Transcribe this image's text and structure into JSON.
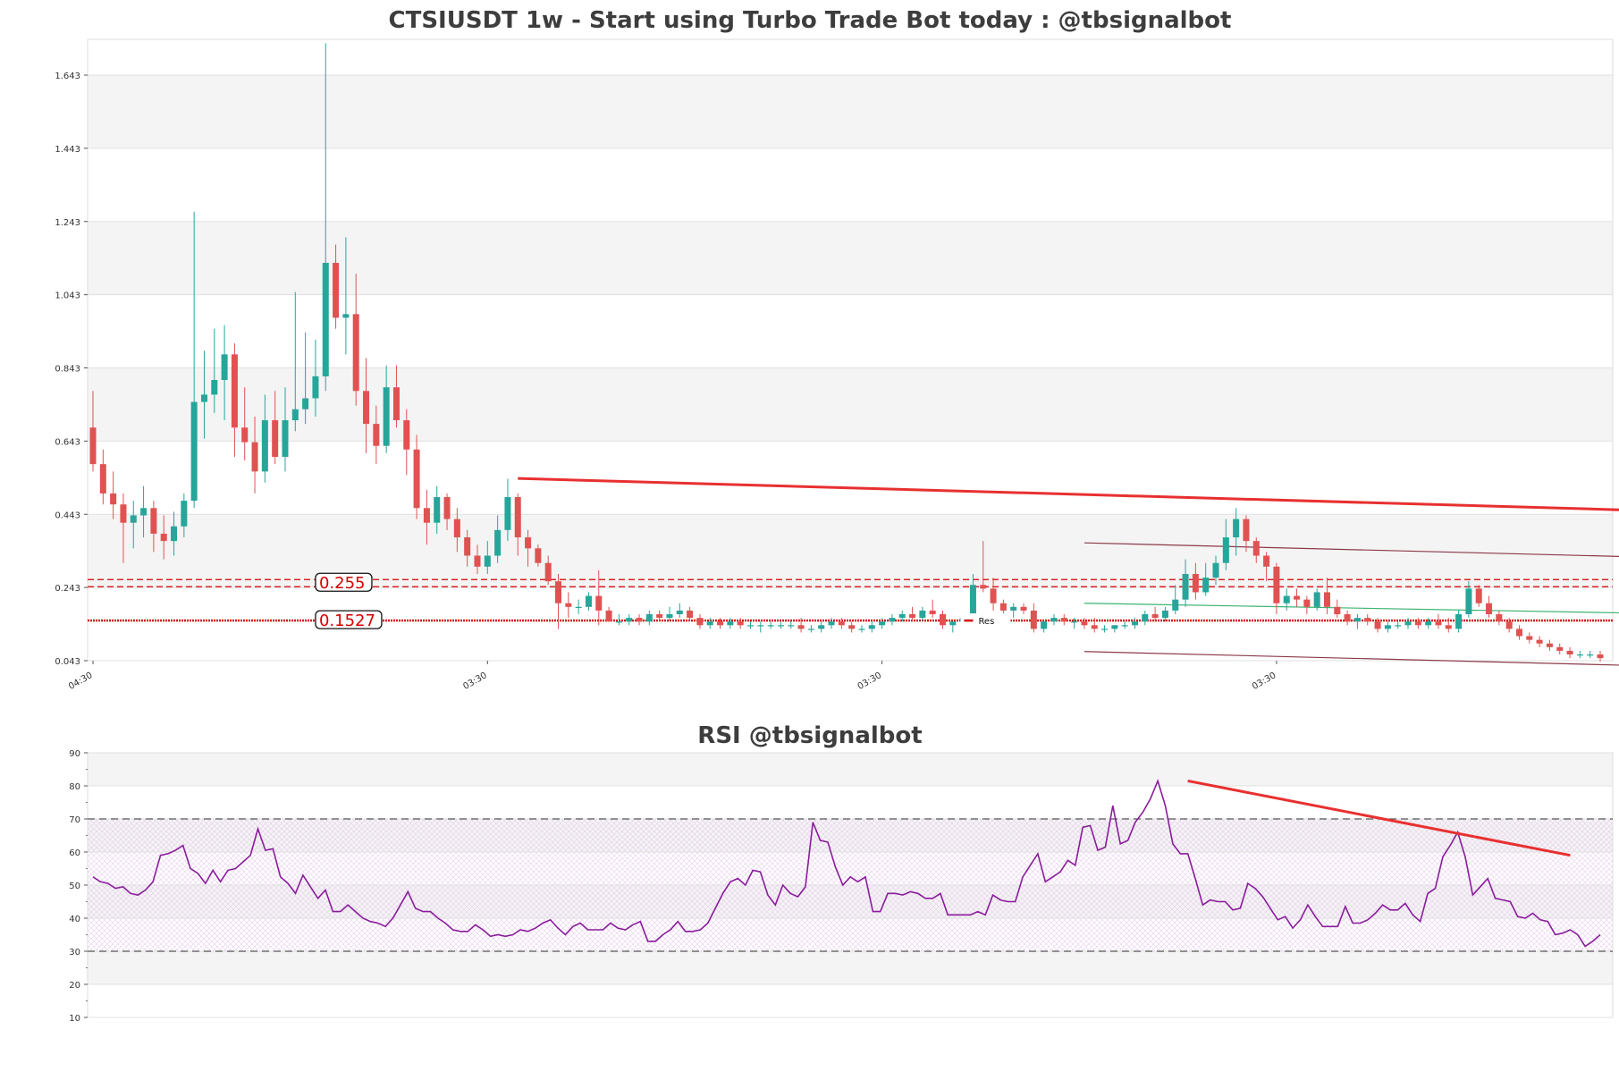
{
  "colors": {
    "up": "#26a69a",
    "down": "#e05252",
    "trend": "#e83030",
    "channel": "#8b3a4a",
    "inner": "#3cb371",
    "level": "#d40000",
    "rsi": "#8a1c9c",
    "band": "#f4f4f4",
    "grid": "#e0e0e0"
  },
  "chart_data": [
    {
      "type": "candlestick",
      "title": "CTSIUSDT 1w - Start using Turbo Trade Bot today : @tbsignalbot",
      "ylim": [
        0.043,
        1.76
      ],
      "yticks": [
        "0.043",
        "0.243",
        "0.443",
        "0.643",
        "0.843",
        "1.043",
        "1.243",
        "1.443",
        "1.643"
      ],
      "xticks": [
        {
          "label": "04:30",
          "index": 0
        },
        {
          "label": "03:30",
          "index": 39
        },
        {
          "label": "03:30",
          "index": 78
        },
        {
          "label": "03:30",
          "index": 117
        },
        {
          "label": "03:30",
          "index": 156
        },
        {
          "label": "03:30",
          "index": 195
        }
      ],
      "levels": [
        {
          "label": "0.255",
          "value": 0.255,
          "style": "dashed"
        },
        {
          "label": "0.1527",
          "value": 0.1527,
          "style": "dotted"
        }
      ],
      "resistance_label": "Res",
      "resistance_value": 0.1527,
      "trendlines": [
        {
          "role": "trend",
          "from": [
            42,
            0.541
          ],
          "to": [
            197,
            0.419
          ]
        },
        {
          "role": "channel",
          "from": [
            98,
            0.365
          ],
          "to": [
            195,
            0.297
          ]
        },
        {
          "role": "channel",
          "from": [
            98,
            0.068
          ],
          "to": [
            195,
            0.0
          ]
        },
        {
          "role": "inner",
          "from": [
            98,
            0.2
          ],
          "to": [
            195,
            0.152
          ]
        }
      ],
      "candles": [
        [
          0.68,
          0.78,
          0.56,
          0.58
        ],
        [
          0.58,
          0.62,
          0.47,
          0.5
        ],
        [
          0.5,
          0.56,
          0.43,
          0.47
        ],
        [
          0.47,
          0.5,
          0.31,
          0.42
        ],
        [
          0.42,
          0.48,
          0.35,
          0.44
        ],
        [
          0.44,
          0.52,
          0.38,
          0.46
        ],
        [
          0.46,
          0.48,
          0.34,
          0.39
        ],
        [
          0.39,
          0.44,
          0.32,
          0.37
        ],
        [
          0.37,
          0.45,
          0.33,
          0.41
        ],
        [
          0.41,
          0.5,
          0.38,
          0.48
        ],
        [
          0.48,
          1.27,
          0.46,
          0.75
        ],
        [
          0.75,
          0.89,
          0.65,
          0.77
        ],
        [
          0.77,
          0.95,
          0.72,
          0.81
        ],
        [
          0.81,
          0.96,
          0.7,
          0.88
        ],
        [
          0.88,
          0.91,
          0.6,
          0.68
        ],
        [
          0.68,
          0.79,
          0.59,
          0.64
        ],
        [
          0.64,
          0.71,
          0.5,
          0.56
        ],
        [
          0.56,
          0.77,
          0.53,
          0.7
        ],
        [
          0.7,
          0.78,
          0.58,
          0.6
        ],
        [
          0.6,
          0.79,
          0.56,
          0.7
        ],
        [
          0.7,
          1.05,
          0.67,
          0.73
        ],
        [
          0.73,
          0.94,
          0.69,
          0.76
        ],
        [
          0.76,
          0.92,
          0.71,
          0.82
        ],
        [
          0.82,
          1.73,
          0.78,
          1.13
        ],
        [
          1.13,
          1.18,
          0.95,
          0.98
        ],
        [
          0.98,
          1.2,
          0.88,
          0.99
        ],
        [
          0.99,
          1.1,
          0.74,
          0.78
        ],
        [
          0.78,
          0.87,
          0.61,
          0.69
        ],
        [
          0.69,
          0.74,
          0.58,
          0.63
        ],
        [
          0.63,
          0.85,
          0.61,
          0.79
        ],
        [
          0.79,
          0.85,
          0.68,
          0.7
        ],
        [
          0.7,
          0.73,
          0.55,
          0.62
        ],
        [
          0.62,
          0.66,
          0.43,
          0.46
        ],
        [
          0.46,
          0.51,
          0.36,
          0.42
        ],
        [
          0.42,
          0.52,
          0.39,
          0.49
        ],
        [
          0.49,
          0.5,
          0.4,
          0.43
        ],
        [
          0.43,
          0.46,
          0.34,
          0.38
        ],
        [
          0.38,
          0.4,
          0.3,
          0.33
        ],
        [
          0.33,
          0.36,
          0.28,
          0.3
        ],
        [
          0.3,
          0.37,
          0.28,
          0.33
        ],
        [
          0.33,
          0.44,
          0.31,
          0.4
        ],
        [
          0.4,
          0.54,
          0.37,
          0.49
        ],
        [
          0.49,
          0.5,
          0.33,
          0.38
        ],
        [
          0.38,
          0.4,
          0.3,
          0.35
        ],
        [
          0.35,
          0.36,
          0.3,
          0.31
        ],
        [
          0.31,
          0.33,
          0.25,
          0.26
        ],
        [
          0.26,
          0.28,
          0.13,
          0.2
        ],
        [
          0.2,
          0.23,
          0.16,
          0.19
        ],
        [
          0.19,
          0.21,
          0.17,
          0.19
        ],
        [
          0.19,
          0.23,
          0.18,
          0.22
        ],
        [
          0.22,
          0.29,
          0.14,
          0.18
        ],
        [
          0.18,
          0.19,
          0.15,
          0.15
        ],
        [
          0.15,
          0.17,
          0.14,
          0.15
        ],
        [
          0.15,
          0.17,
          0.14,
          0.16
        ],
        [
          0.16,
          0.17,
          0.14,
          0.15
        ],
        [
          0.15,
          0.18,
          0.14,
          0.17
        ],
        [
          0.17,
          0.18,
          0.15,
          0.16
        ],
        [
          0.16,
          0.19,
          0.15,
          0.17
        ],
        [
          0.17,
          0.2,
          0.16,
          0.18
        ],
        [
          0.18,
          0.19,
          0.15,
          0.16
        ],
        [
          0.16,
          0.17,
          0.13,
          0.14
        ],
        [
          0.14,
          0.16,
          0.13,
          0.15
        ],
        [
          0.15,
          0.16,
          0.13,
          0.14
        ],
        [
          0.14,
          0.16,
          0.13,
          0.15
        ],
        [
          0.15,
          0.16,
          0.13,
          0.14
        ],
        [
          0.14,
          0.15,
          0.13,
          0.14
        ],
        [
          0.14,
          0.15,
          0.12,
          0.14
        ],
        [
          0.14,
          0.15,
          0.13,
          0.14
        ],
        [
          0.14,
          0.15,
          0.13,
          0.14
        ],
        [
          0.14,
          0.15,
          0.13,
          0.14
        ],
        [
          0.14,
          0.16,
          0.12,
          0.13
        ],
        [
          0.13,
          0.14,
          0.12,
          0.13
        ],
        [
          0.13,
          0.15,
          0.12,
          0.14
        ],
        [
          0.14,
          0.16,
          0.13,
          0.15
        ],
        [
          0.15,
          0.16,
          0.13,
          0.14
        ],
        [
          0.14,
          0.15,
          0.12,
          0.13
        ],
        [
          0.13,
          0.14,
          0.12,
          0.13
        ],
        [
          0.13,
          0.15,
          0.12,
          0.14
        ],
        [
          0.14,
          0.16,
          0.13,
          0.15
        ],
        [
          0.15,
          0.17,
          0.14,
          0.16
        ],
        [
          0.16,
          0.18,
          0.15,
          0.17
        ],
        [
          0.17,
          0.19,
          0.15,
          0.16
        ],
        [
          0.16,
          0.19,
          0.15,
          0.18
        ],
        [
          0.18,
          0.21,
          0.16,
          0.17
        ],
        [
          0.17,
          0.18,
          0.13,
          0.14
        ],
        [
          0.14,
          0.15,
          0.12,
          0.15
        ],
        [
          0.15,
          0.17,
          0.14,
          0.16
        ],
        [
          0.16,
          0.28,
          0.15,
          0.25
        ],
        [
          0.25,
          0.37,
          0.23,
          0.24
        ],
        [
          0.24,
          0.27,
          0.18,
          0.2
        ],
        [
          0.2,
          0.21,
          0.17,
          0.18
        ],
        [
          0.18,
          0.2,
          0.16,
          0.19
        ],
        [
          0.19,
          0.2,
          0.17,
          0.18
        ],
        [
          0.18,
          0.2,
          0.12,
          0.13
        ],
        [
          0.13,
          0.15,
          0.12,
          0.15
        ],
        [
          0.15,
          0.17,
          0.14,
          0.16
        ],
        [
          0.16,
          0.17,
          0.14,
          0.15
        ],
        [
          0.15,
          0.16,
          0.13,
          0.15
        ],
        [
          0.15,
          0.16,
          0.13,
          0.14
        ],
        [
          0.14,
          0.16,
          0.12,
          0.13
        ],
        [
          0.13,
          0.14,
          0.12,
          0.13
        ],
        [
          0.13,
          0.14,
          0.12,
          0.14
        ],
        [
          0.14,
          0.15,
          0.13,
          0.14
        ],
        [
          0.14,
          0.16,
          0.13,
          0.15
        ],
        [
          0.15,
          0.18,
          0.14,
          0.17
        ],
        [
          0.17,
          0.19,
          0.15,
          0.16
        ],
        [
          0.16,
          0.19,
          0.15,
          0.18
        ],
        [
          0.18,
          0.25,
          0.17,
          0.21
        ],
        [
          0.21,
          0.32,
          0.19,
          0.28
        ],
        [
          0.28,
          0.31,
          0.21,
          0.23
        ],
        [
          0.23,
          0.31,
          0.22,
          0.27
        ],
        [
          0.27,
          0.33,
          0.25,
          0.31
        ],
        [
          0.31,
          0.43,
          0.29,
          0.38
        ],
        [
          0.38,
          0.46,
          0.33,
          0.43
        ],
        [
          0.43,
          0.44,
          0.34,
          0.37
        ],
        [
          0.37,
          0.38,
          0.31,
          0.33
        ],
        [
          0.33,
          0.34,
          0.26,
          0.3
        ],
        [
          0.3,
          0.31,
          0.17,
          0.2
        ],
        [
          0.2,
          0.24,
          0.18,
          0.22
        ],
        [
          0.22,
          0.24,
          0.19,
          0.21
        ],
        [
          0.21,
          0.22,
          0.17,
          0.19
        ],
        [
          0.19,
          0.24,
          0.18,
          0.23
        ],
        [
          0.23,
          0.27,
          0.17,
          0.19
        ],
        [
          0.19,
          0.21,
          0.16,
          0.17
        ],
        [
          0.17,
          0.18,
          0.14,
          0.15
        ],
        [
          0.15,
          0.17,
          0.13,
          0.16
        ],
        [
          0.16,
          0.17,
          0.14,
          0.15
        ],
        [
          0.15,
          0.16,
          0.12,
          0.13
        ],
        [
          0.13,
          0.15,
          0.12,
          0.14
        ],
        [
          0.14,
          0.15,
          0.13,
          0.14
        ],
        [
          0.14,
          0.16,
          0.13,
          0.15
        ],
        [
          0.15,
          0.16,
          0.13,
          0.14
        ],
        [
          0.14,
          0.16,
          0.13,
          0.15
        ],
        [
          0.15,
          0.17,
          0.13,
          0.14
        ],
        [
          0.14,
          0.16,
          0.12,
          0.13
        ],
        [
          0.13,
          0.18,
          0.12,
          0.17
        ],
        [
          0.17,
          0.26,
          0.16,
          0.24
        ],
        [
          0.24,
          0.25,
          0.19,
          0.2
        ],
        [
          0.2,
          0.22,
          0.16,
          0.17
        ],
        [
          0.17,
          0.18,
          0.14,
          0.15
        ],
        [
          0.15,
          0.16,
          0.12,
          0.13
        ],
        [
          0.13,
          0.14,
          0.1,
          0.11
        ],
        [
          0.11,
          0.12,
          0.09,
          0.1
        ],
        [
          0.1,
          0.11,
          0.08,
          0.09
        ],
        [
          0.09,
          0.1,
          0.07,
          0.08
        ],
        [
          0.08,
          0.09,
          0.06,
          0.07
        ],
        [
          0.07,
          0.08,
          0.05,
          0.06
        ],
        [
          0.06,
          0.07,
          0.05,
          0.06
        ],
        [
          0.06,
          0.07,
          0.05,
          0.06
        ],
        [
          0.06,
          0.07,
          0.04,
          0.05
        ]
      ]
    },
    {
      "type": "line",
      "title": "RSI @tbsignalbot",
      "ylim": [
        10,
        90
      ],
      "yticks": [
        "10",
        "20",
        "30",
        "40",
        "50",
        "60",
        "70",
        "80",
        "90"
      ],
      "overbought": 70,
      "oversold": 30,
      "trendline": {
        "from": [
          146,
          81.5
        ],
        "to": [
          197,
          59
        ]
      },
      "values": [
        52.5,
        51,
        50.5,
        49,
        49.5,
        47.5,
        47,
        48.5,
        51,
        59,
        59.5,
        60.5,
        62,
        55,
        53.5,
        50.5,
        54.5,
        51,
        54.5,
        55,
        57,
        59,
        67,
        60.5,
        61,
        52.5,
        50.5,
        47.5,
        53,
        49.5,
        46,
        48.5,
        42,
        42,
        44,
        42,
        40,
        39,
        38.5,
        37.5,
        40,
        44,
        48,
        43,
        42,
        42,
        40,
        38.5,
        36.5,
        36,
        36,
        38,
        36.5,
        34.5,
        35,
        34.5,
        35,
        36.5,
        36,
        37,
        38.5,
        39.5,
        37,
        35,
        37.5,
        38.5,
        36.5,
        36.5,
        36.5,
        38.5,
        37,
        36.5,
        38,
        39,
        33,
        33,
        35,
        36.5,
        39,
        36,
        36,
        36.5,
        38.5,
        43,
        47.5,
        51,
        52,
        50,
        54.5,
        54,
        47,
        44,
        50,
        47.5,
        46.5,
        49.5,
        69,
        63.5,
        63,
        55.5,
        50,
        52.5,
        51,
        52.5,
        42,
        42,
        47.5,
        47.5,
        47,
        48,
        47.5,
        46,
        46,
        47.5,
        41,
        41,
        41,
        41,
        42,
        41,
        47,
        45.5,
        45,
        45,
        52.5,
        56,
        59.5,
        51,
        52.5,
        54,
        57.5,
        56,
        67.5,
        68,
        60.5,
        61.5,
        74,
        62.5,
        63.5,
        69,
        72,
        76,
        81.5,
        74,
        62.5,
        59.5,
        59.5,
        52,
        44,
        45.5,
        45,
        45,
        42.5,
        43,
        50.5,
        49,
        46.5,
        43,
        39.5,
        40.5,
        37,
        39.5,
        44,
        40.5,
        37.5,
        37.5,
        37.5,
        43.5,
        38.5,
        38.5,
        39.5,
        41.5,
        44,
        42.5,
        42.5,
        44.5,
        41,
        39,
        47.5,
        49,
        58.5,
        62,
        66,
        58.5,
        47,
        49.5,
        52,
        46,
        45.5,
        45,
        40.5,
        40,
        41.5,
        39.5,
        39,
        35,
        35.5,
        36.5,
        35,
        31.5,
        33,
        35
      ]
    }
  ]
}
